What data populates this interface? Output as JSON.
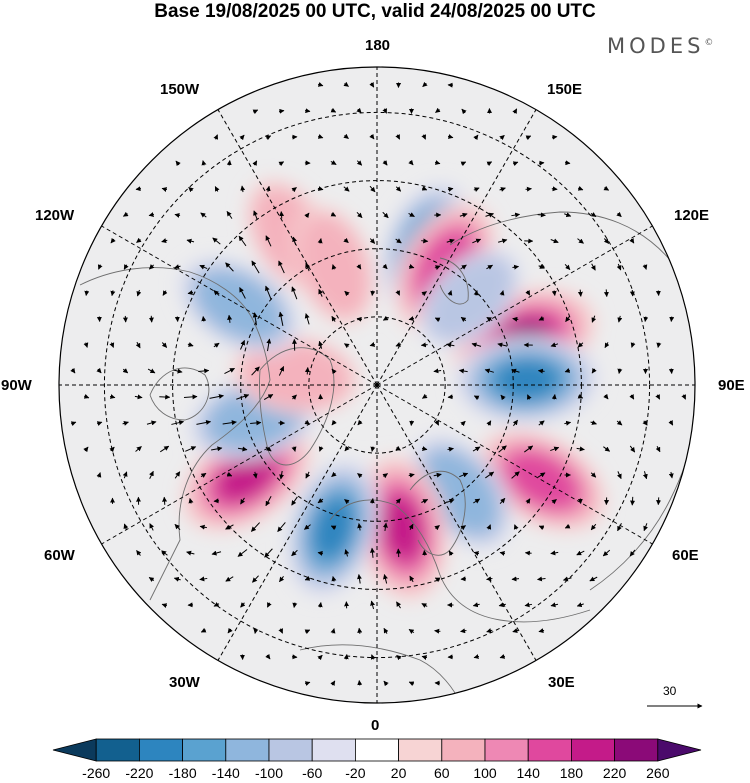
{
  "title": "Base 19/08/2025 00 UTC, valid 24/08/2025 00 UTC",
  "brand": "MODES",
  "brand_mark": "©",
  "longitude_labels": {
    "lon_180": "180",
    "lon_150w": "150W",
    "lon_150e": "150E",
    "lon_120w": "120W",
    "lon_120e": "120E",
    "lon_90w": "90W",
    "lon_90e": "90E",
    "lon_60w": "60W",
    "lon_60e": "60E",
    "lon_30w": "30W",
    "lon_30e": "30E",
    "lon_0": "0"
  },
  "wind_reference": {
    "value": "30"
  },
  "colorbar": {
    "ticks": [
      "-260",
      "-220",
      "-180",
      "-140",
      "-100",
      "-60",
      "-20",
      "20",
      "60",
      "100",
      "140",
      "180",
      "220",
      "260"
    ],
    "colors": [
      "#0b3a5c",
      "#12608f",
      "#2d85bf",
      "#5aa2d0",
      "#8fb6dd",
      "#b9c6e3",
      "#dfe0f0",
      "#ffffff",
      "#f7d4d4",
      "#f4b2bd",
      "#ee88b4",
      "#e0489e",
      "#c41b89",
      "#8b0a78",
      "#4b0a6b"
    ]
  },
  "anomalies": [
    {
      "lon": 108,
      "lat": 56,
      "value": 230
    },
    {
      "lon": 92,
      "lat": 57,
      "value": -200
    },
    {
      "lon": 60,
      "lat": 48,
      "value": 170
    },
    {
      "lon": 38,
      "lat": 60,
      "value": -120
    },
    {
      "lon": 10,
      "lat": 58,
      "value": 210
    },
    {
      "lon": 343,
      "lat": 57,
      "value": -180
    },
    {
      "lon": 305,
      "lat": 55,
      "value": 210
    },
    {
      "lon": 285,
      "lat": 62,
      "value": -130
    },
    {
      "lon": 263,
      "lat": 72,
      "value": 90
    },
    {
      "lon": 240,
      "lat": 55,
      "value": -120
    },
    {
      "lon": 210,
      "lat": 52,
      "value": 60
    },
    {
      "lon": 200,
      "lat": 62,
      "value": 70
    },
    {
      "lon": 160,
      "lat": 58,
      "value": -150
    },
    {
      "lon": 150,
      "lat": 60,
      "value": 170
    },
    {
      "lon": 133,
      "lat": 62,
      "value": -60
    }
  ]
}
